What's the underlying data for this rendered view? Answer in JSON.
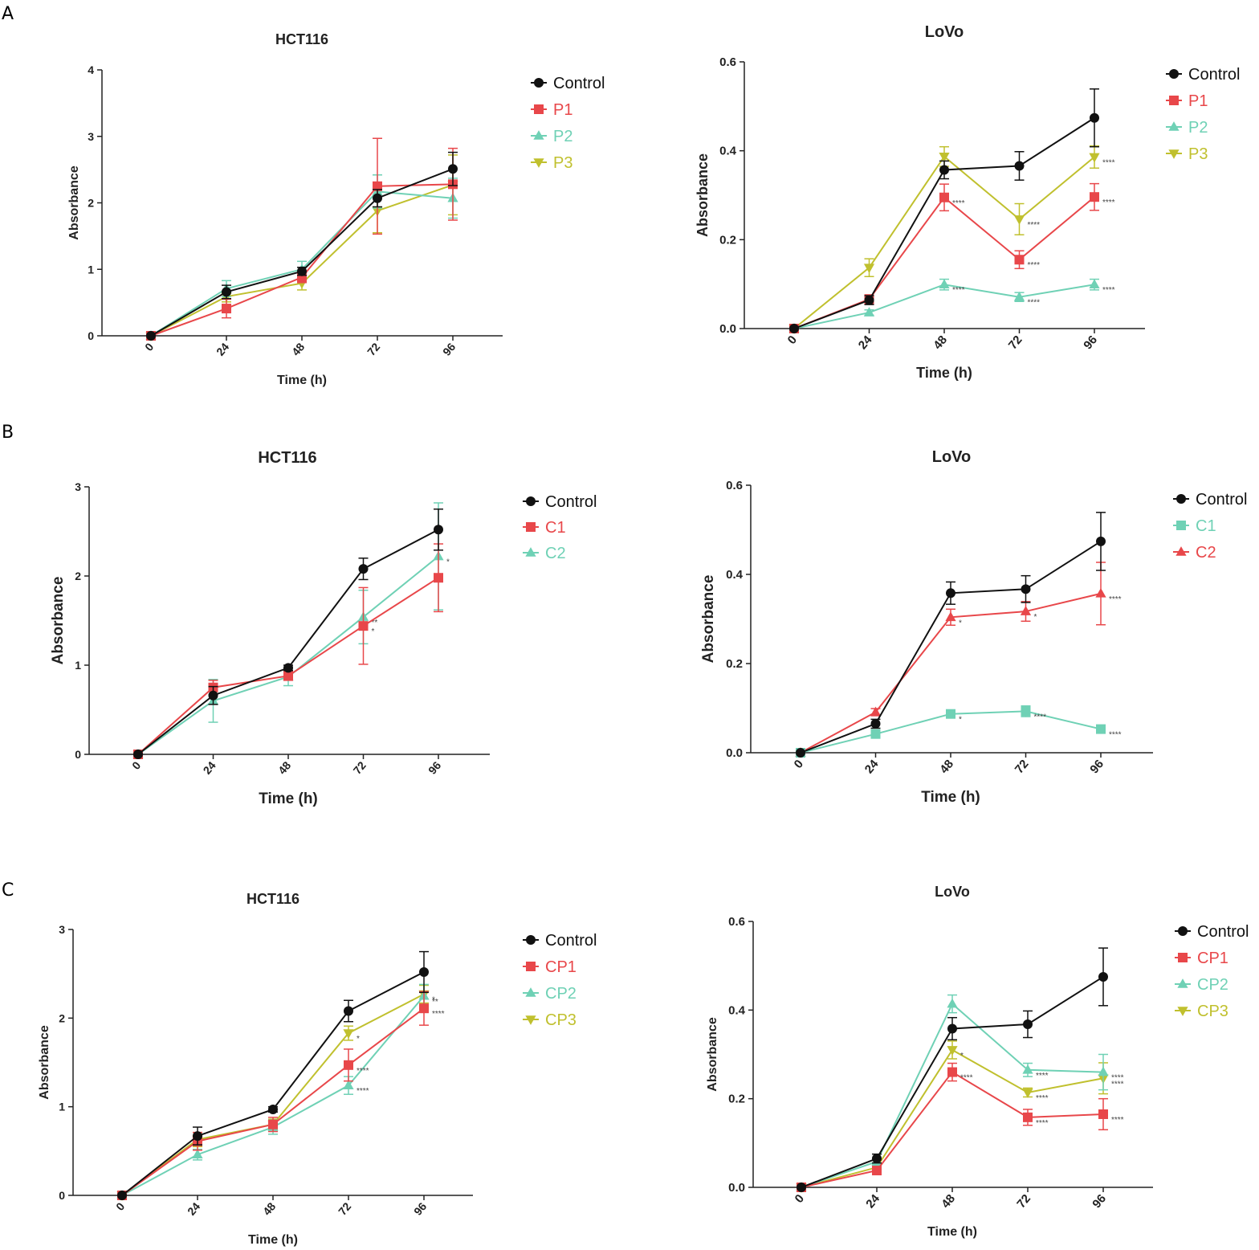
{
  "panel_letters": [
    "A",
    "B",
    "C"
  ],
  "colors": {
    "Control": "#111111",
    "red": "#e8474a",
    "teal": "#6fd1b5",
    "olive": "#c0c02e"
  },
  "chart_data": [
    {
      "id": "A-HCT116",
      "panel": "A",
      "type": "line",
      "title": "HCT116",
      "xlabel": "Time (h)",
      "ylabel": "Absorbance",
      "categories": [
        "0",
        "24",
        "48",
        "72",
        "96"
      ],
      "ylim": [
        0,
        4
      ],
      "yticks": [
        "0",
        "1",
        "2",
        "3",
        "4"
      ],
      "series": [
        {
          "name": "Control",
          "color": "#111111",
          "marker": "circle",
          "values": [
            0,
            0.66,
            0.97,
            2.07,
            2.51
          ],
          "err": [
            0,
            0.1,
            0.06,
            0.13,
            0.25
          ],
          "sig": [
            "",
            "",
            "",
            "",
            ""
          ]
        },
        {
          "name": "P1",
          "color": "#e8474a",
          "marker": "square",
          "values": [
            0,
            0.41,
            0.88,
            2.25,
            2.28
          ],
          "err": [
            0,
            0.14,
            0.08,
            0.72,
            0.54
          ],
          "sig": [
            "",
            "",
            "",
            "",
            ""
          ]
        },
        {
          "name": "P2",
          "color": "#6fd1b5",
          "marker": "triangle",
          "values": [
            0,
            0.71,
            1.0,
            2.17,
            2.07
          ],
          "err": [
            0,
            0.12,
            0.12,
            0.25,
            0.3
          ],
          "sig": [
            "",
            "",
            "",
            "",
            ""
          ]
        },
        {
          "name": "P3",
          "color": "#c0c02e",
          "marker": "triangle-down",
          "values": [
            0,
            0.59,
            0.79,
            1.88,
            2.27
          ],
          "err": [
            0,
            0.08,
            0.1,
            0.33,
            0.45
          ],
          "sig": [
            "",
            "",
            "",
            "",
            ""
          ]
        }
      ]
    },
    {
      "id": "A-LoVo",
      "panel": "A",
      "type": "line",
      "title": "LoVo",
      "xlabel": "Time (h)",
      "ylabel": "Absorbance",
      "categories": [
        "0",
        "24",
        "48",
        "72",
        "96"
      ],
      "ylim": [
        0,
        0.6
      ],
      "yticks": [
        "0.0",
        "0.2",
        "0.4",
        "0.6"
      ],
      "series": [
        {
          "name": "Control",
          "color": "#111111",
          "marker": "circle",
          "values": [
            0,
            0.064,
            0.357,
            0.366,
            0.474
          ],
          "err": [
            0,
            0.01,
            0.02,
            0.032,
            0.065
          ],
          "sig": [
            "",
            "",
            "",
            "",
            ""
          ]
        },
        {
          "name": "P1",
          "color": "#e8474a",
          "marker": "square",
          "values": [
            0,
            0.066,
            0.295,
            0.155,
            0.296
          ],
          "err": [
            0,
            0.01,
            0.03,
            0.02,
            0.03
          ],
          "sig": [
            "",
            "",
            "****",
            "****",
            "****"
          ]
        },
        {
          "name": "P2",
          "color": "#6fd1b5",
          "marker": "triangle",
          "values": [
            0,
            0.036,
            0.099,
            0.071,
            0.099
          ],
          "err": [
            0,
            0.006,
            0.012,
            0.01,
            0.012
          ],
          "sig": [
            "",
            "",
            "****",
            "****",
            "****"
          ]
        },
        {
          "name": "P3",
          "color": "#c0c02e",
          "marker": "triangle-down",
          "values": [
            0,
            0.137,
            0.387,
            0.246,
            0.386
          ],
          "err": [
            0,
            0.02,
            0.022,
            0.035,
            0.025
          ],
          "sig": [
            "",
            "",
            "",
            "****",
            "****"
          ]
        }
      ]
    },
    {
      "id": "B-HCT116",
      "panel": "B",
      "type": "line",
      "title": "HCT116",
      "xlabel": "Time (h)",
      "ylabel": "Absorbance",
      "categories": [
        "0",
        "24",
        "48",
        "72",
        "96"
      ],
      "ylim": [
        0,
        3
      ],
      "yticks": [
        "0",
        "1",
        "2",
        "3"
      ],
      "series": [
        {
          "name": "Control",
          "color": "#111111",
          "marker": "circle",
          "values": [
            0,
            0.66,
            0.97,
            2.08,
            2.52
          ],
          "err": [
            0,
            0.1,
            0.03,
            0.12,
            0.23
          ],
          "sig": [
            "",
            "",
            "",
            "",
            ""
          ]
        },
        {
          "name": "C1",
          "color": "#e8474a",
          "marker": "square",
          "values": [
            0,
            0.75,
            0.88,
            1.44,
            1.98
          ],
          "err": [
            0,
            0.08,
            0.05,
            0.43,
            0.38
          ],
          "sig": [
            "",
            "",
            "",
            "*",
            ""
          ]
        },
        {
          "name": "C2",
          "color": "#6fd1b5",
          "marker": "triangle",
          "values": [
            0,
            0.6,
            0.87,
            1.54,
            2.22
          ],
          "err": [
            0,
            0.24,
            0.1,
            0.3,
            0.6
          ],
          "sig": [
            "",
            "",
            "",
            "**",
            "*"
          ]
        }
      ]
    },
    {
      "id": "B-LoVo",
      "panel": "B",
      "type": "line",
      "title": "LoVo",
      "xlabel": "Time (h)",
      "ylabel": "Absorbance",
      "categories": [
        "0",
        "24",
        "48",
        "72",
        "96"
      ],
      "ylim": [
        0,
        0.6
      ],
      "yticks": [
        "0.0",
        "0.2",
        "0.4",
        "0.6"
      ],
      "series": [
        {
          "name": "Control",
          "color": "#111111",
          "marker": "circle",
          "values": [
            0,
            0.065,
            0.358,
            0.367,
            0.474
          ],
          "err": [
            0,
            0.01,
            0.025,
            0.03,
            0.065
          ],
          "sig": [
            "",
            "",
            "",
            "",
            ""
          ]
        },
        {
          "name": "C1",
          "color": "#6fd1b5",
          "marker": "square",
          "values": [
            0,
            0.042,
            0.087,
            0.093,
            0.053
          ],
          "err": [
            0,
            0.005,
            0.007,
            0.012,
            0.005
          ],
          "sig": [
            "",
            "",
            "*",
            "****",
            "****"
          ]
        },
        {
          "name": "C2",
          "color": "#e8474a",
          "marker": "triangle",
          "values": [
            0,
            0.091,
            0.304,
            0.317,
            0.357
          ],
          "err": [
            0,
            0.008,
            0.018,
            0.022,
            0.07
          ],
          "sig": [
            "",
            "",
            "*",
            "*",
            "****"
          ]
        }
      ]
    },
    {
      "id": "C-HCT116",
      "panel": "C",
      "type": "line",
      "title": "HCT116",
      "xlabel": "Time (h)",
      "ylabel": "Absorbance",
      "categories": [
        "0",
        "24",
        "48",
        "72",
        "96"
      ],
      "ylim": [
        0,
        3
      ],
      "yticks": [
        "0",
        "1",
        "2",
        "3"
      ],
      "series": [
        {
          "name": "Control",
          "color": "#111111",
          "marker": "circle",
          "values": [
            0,
            0.67,
            0.97,
            2.08,
            2.52
          ],
          "err": [
            0,
            0.1,
            0.03,
            0.12,
            0.23
          ],
          "sig": [
            "",
            "",
            "",
            "",
            ""
          ]
        },
        {
          "name": "CP1",
          "color": "#e8474a",
          "marker": "square",
          "values": [
            0,
            0.61,
            0.8,
            1.47,
            2.11
          ],
          "err": [
            0,
            0.1,
            0.08,
            0.18,
            0.19
          ],
          "sig": [
            "",
            "",
            "",
            "****",
            "****"
          ]
        },
        {
          "name": "CP2",
          "color": "#6fd1b5",
          "marker": "triangle",
          "values": [
            0,
            0.46,
            0.77,
            1.24,
            2.25
          ],
          "err": [
            0,
            0.06,
            0.08,
            0.1,
            0.13
          ],
          "sig": [
            "",
            "",
            "",
            "****",
            "**"
          ]
        },
        {
          "name": "CP3",
          "color": "#c0c02e",
          "marker": "triangle-down",
          "values": [
            0,
            0.63,
            0.8,
            1.83,
            2.27
          ],
          "err": [
            0,
            0.08,
            0.06,
            0.08,
            0.1
          ],
          "sig": [
            "",
            "",
            "",
            "*",
            "*"
          ]
        }
      ]
    },
    {
      "id": "C-LoVo",
      "panel": "C",
      "type": "line",
      "title": "LoVo",
      "xlabel": "Time (h)",
      "ylabel": "Absorbance",
      "categories": [
        "0",
        "24",
        "48",
        "72",
        "96"
      ],
      "ylim": [
        0,
        0.6
      ],
      "yticks": [
        "0.0",
        "0.2",
        "0.4",
        "0.6"
      ],
      "series": [
        {
          "name": "Control",
          "color": "#111111",
          "marker": "circle",
          "values": [
            0,
            0.065,
            0.358,
            0.368,
            0.475
          ],
          "err": [
            0,
            0.01,
            0.025,
            0.03,
            0.065
          ],
          "sig": [
            "",
            "",
            "",
            "",
            ""
          ]
        },
        {
          "name": "CP1",
          "color": "#e8474a",
          "marker": "square",
          "values": [
            0,
            0.038,
            0.26,
            0.158,
            0.165
          ],
          "err": [
            0,
            0.005,
            0.02,
            0.018,
            0.035
          ],
          "sig": [
            "",
            "",
            "****",
            "****",
            "****"
          ]
        },
        {
          "name": "CP2",
          "color": "#6fd1b5",
          "marker": "triangle",
          "values": [
            0,
            0.058,
            0.414,
            0.265,
            0.26
          ],
          "err": [
            0,
            0.008,
            0.02,
            0.015,
            0.04
          ],
          "sig": [
            "",
            "",
            "",
            "****",
            "****"
          ]
        },
        {
          "name": "CP3",
          "color": "#c0c02e",
          "marker": "triangle-down",
          "values": [
            0,
            0.045,
            0.31,
            0.214,
            0.246
          ],
          "err": [
            0,
            0.006,
            0.02,
            0.01,
            0.035
          ],
          "sig": [
            "",
            "",
            "*",
            "****",
            "****"
          ]
        }
      ]
    }
  ]
}
